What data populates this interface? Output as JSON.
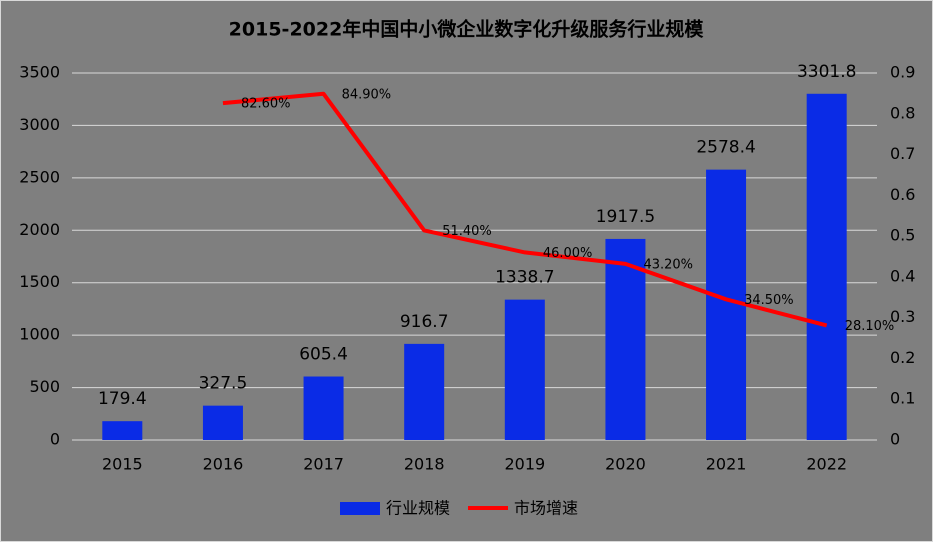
{
  "chart_data": {
    "type": "bar",
    "title": "2015-2022年中国中小微企业数字化升级服务行业规模",
    "categories": [
      "2015",
      "2016",
      "2017",
      "2018",
      "2019",
      "2020",
      "2021",
      "2022"
    ],
    "series": [
      {
        "name": "行业规模",
        "type": "bar",
        "color": "#0a2be6",
        "values": [
          179.4,
          327.5,
          605.4,
          916.7,
          1338.7,
          1917.5,
          2578.4,
          3301.8
        ]
      },
      {
        "name": "市场增速",
        "type": "line",
        "axis": "y2",
        "color": "#ff0000",
        "values": [
          null,
          0.826,
          0.849,
          0.514,
          0.46,
          0.432,
          0.345,
          0.281
        ],
        "value_labels": [
          null,
          "82.60%",
          "84.90%",
          "51.40%",
          "46.00%",
          "43.20%",
          "34.50%",
          "28.10%"
        ]
      }
    ],
    "ylim": [
      0,
      3500
    ],
    "yticks": [
      0,
      500,
      1000,
      1500,
      2000,
      2500,
      3000,
      3500
    ],
    "y2lim": [
      0,
      0.9
    ],
    "y2ticks": [
      0,
      0.1,
      0.2,
      0.3,
      0.4,
      0.5,
      0.6,
      0.7,
      0.8,
      0.9
    ],
    "grid": true,
    "legend": "bottom"
  }
}
